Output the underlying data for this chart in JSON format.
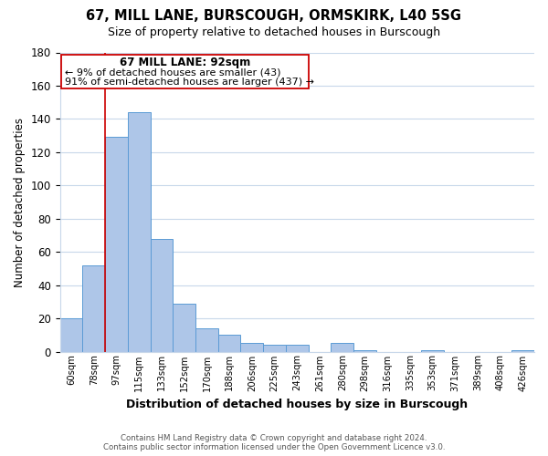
{
  "title": "67, MILL LANE, BURSCOUGH, ORMSKIRK, L40 5SG",
  "subtitle": "Size of property relative to detached houses in Burscough",
  "xlabel": "Distribution of detached houses by size in Burscough",
  "ylabel": "Number of detached properties",
  "bar_labels": [
    "60sqm",
    "78sqm",
    "97sqm",
    "115sqm",
    "133sqm",
    "152sqm",
    "170sqm",
    "188sqm",
    "206sqm",
    "225sqm",
    "243sqm",
    "261sqm",
    "280sqm",
    "298sqm",
    "316sqm",
    "335sqm",
    "353sqm",
    "371sqm",
    "389sqm",
    "408sqm",
    "426sqm"
  ],
  "bar_values": [
    20,
    52,
    129,
    144,
    68,
    29,
    14,
    10,
    5,
    4,
    4,
    0,
    5,
    1,
    0,
    0,
    1,
    0,
    0,
    0,
    1
  ],
  "bar_color": "#aec6e8",
  "bar_edge_color": "#5b9bd5",
  "ylim": [
    0,
    180
  ],
  "yticks": [
    0,
    20,
    40,
    60,
    80,
    100,
    120,
    140,
    160,
    180
  ],
  "vline_x_index": 2,
  "vline_color": "#cc0000",
  "annotation_title": "67 MILL LANE: 92sqm",
  "annotation_line1": "← 9% of detached houses are smaller (43)",
  "annotation_line2": "91% of semi-detached houses are larger (437) →",
  "annotation_box_color": "#ffffff",
  "annotation_box_edge": "#cc0000",
  "footer_line1": "Contains HM Land Registry data © Crown copyright and database right 2024.",
  "footer_line2": "Contains public sector information licensed under the Open Government Licence v3.0.",
  "background_color": "#ffffff",
  "grid_color": "#c8d8ea"
}
